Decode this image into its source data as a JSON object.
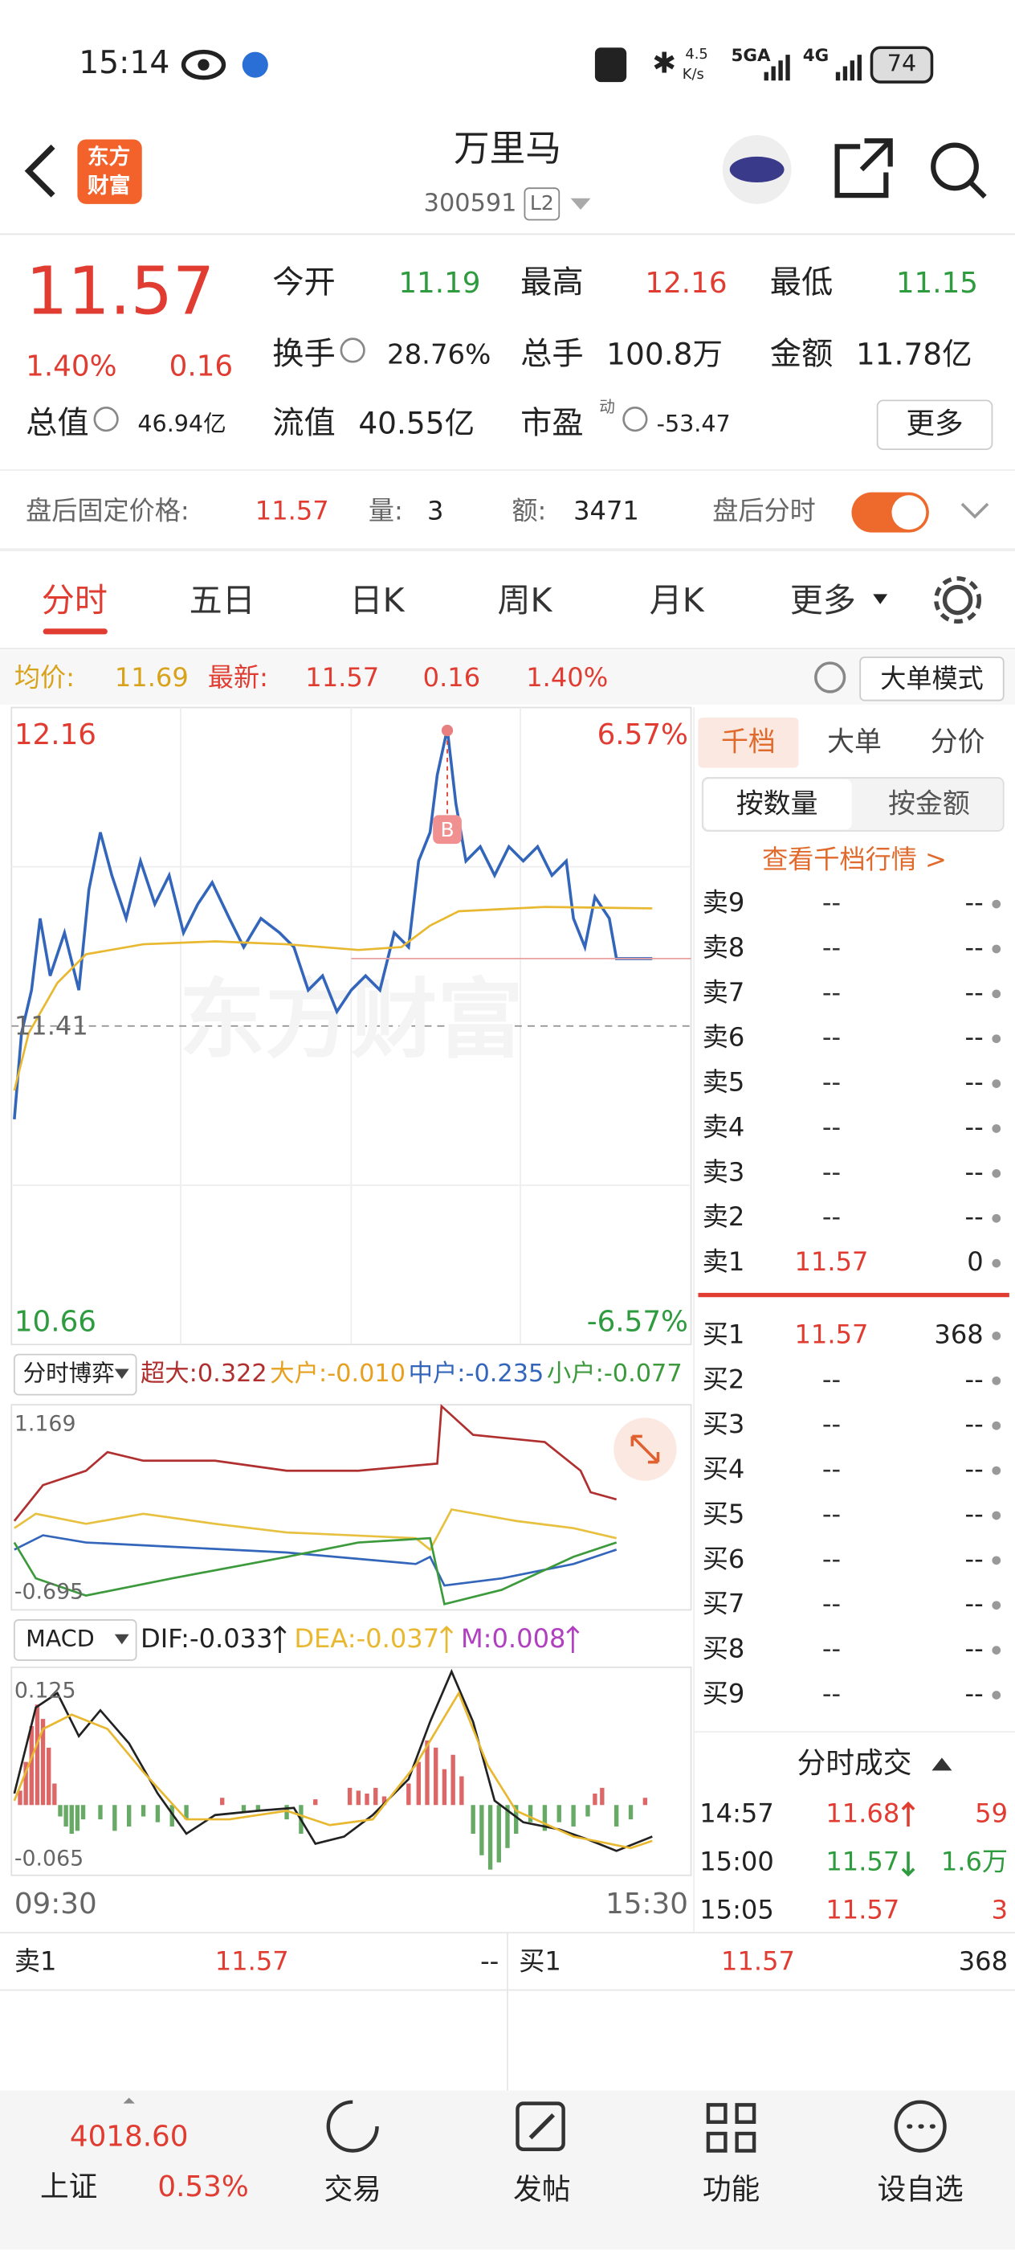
{
  "status": {
    "time": "15:14",
    "speed": "4.5",
    "speed_unit": "K/s",
    "net1": "5GA",
    "net2": "4G",
    "battery": "74"
  },
  "header": {
    "logo_top": "东方",
    "logo_bottom": "财富",
    "name": "万里马",
    "code": "300591",
    "level": "L2"
  },
  "quote": {
    "price": "11.57",
    "change_pct": "1.40%",
    "change": "0.16",
    "fields": [
      {
        "label": "今开",
        "value": "11.19"
      },
      {
        "label": "最高",
        "value": "12.16"
      },
      {
        "label": "最低",
        "value": "11.15"
      },
      {
        "label": "换手",
        "value": "28.76%"
      },
      {
        "label": "总手",
        "value": "100.8万"
      },
      {
        "label": "金额",
        "value": "11.78亿"
      },
      {
        "label": "总值",
        "value": "46.94亿"
      },
      {
        "label": "流值",
        "value": "40.55亿"
      },
      {
        "label": "市盈",
        "value": "-53.47"
      }
    ],
    "pe_mark": "动",
    "more": "更多"
  },
  "after_hours": {
    "label": "盘后固定价格:",
    "price": "11.57",
    "vol_label": "量:",
    "vol": "3",
    "amt_label": "额:",
    "amt": "3471",
    "toggle_label": "盘后分时"
  },
  "tabs": [
    "分时",
    "五日",
    "日K",
    "周K",
    "月K",
    "更多"
  ],
  "info_bar": {
    "avg_label": "均价:",
    "avg": "11.69",
    "last_label": "最新:",
    "last": "11.57",
    "change": "0.16",
    "change_pct": "1.40%",
    "mode": "大单模式"
  },
  "chart": {
    "top_left": "12.16",
    "top_right": "6.57%",
    "mid": "11.41",
    "bottom_left": "10.66",
    "bottom_right": "-6.57%",
    "watermark": "东方财富",
    "marker": "B"
  },
  "flow": {
    "selector": "分时博弈",
    "items": [
      "超大:0.322",
      "大户:-0.010",
      "中户:-0.235",
      "小户:-0.077"
    ],
    "axis_top": "1.169",
    "axis_bottom": "-0.695"
  },
  "macd": {
    "selector": "MACD",
    "items": [
      "DIF:-0.033",
      "DEA:-0.037",
      "M:0.008"
    ],
    "axis_top": "0.125",
    "axis_bottom": "-0.065"
  },
  "time_axis": [
    "09:30",
    "15:30"
  ],
  "side": {
    "tabs": [
      "千档",
      "大单",
      "分价"
    ],
    "sub_tabs": [
      "按数量",
      "按金额"
    ],
    "link": "查看千档行情 >",
    "sells": [
      {
        "label": "卖9",
        "price": "--",
        "vol": "--"
      },
      {
        "label": "卖8",
        "price": "--",
        "vol": "--"
      },
      {
        "label": "卖7",
        "price": "--",
        "vol": "--"
      },
      {
        "label": "卖6",
        "price": "--",
        "vol": "--"
      },
      {
        "label": "卖5",
        "price": "--",
        "vol": "--"
      },
      {
        "label": "卖4",
        "price": "--",
        "vol": "--"
      },
      {
        "label": "卖3",
        "price": "--",
        "vol": "--"
      },
      {
        "label": "卖2",
        "price": "--",
        "vol": "--"
      },
      {
        "label": "卖1",
        "price": "11.57",
        "vol": "0"
      }
    ],
    "buys": [
      {
        "label": "买1",
        "price": "11.57",
        "vol": "368"
      },
      {
        "label": "买2",
        "price": "--",
        "vol": "--"
      },
      {
        "label": "买3",
        "price": "--",
        "vol": "--"
      },
      {
        "label": "买4",
        "price": "--",
        "vol": "--"
      },
      {
        "label": "买5",
        "price": "--",
        "vol": "--"
      },
      {
        "label": "买6",
        "price": "--",
        "vol": "--"
      },
      {
        "label": "买7",
        "price": "--",
        "vol": "--"
      },
      {
        "label": "买8",
        "price": "--",
        "vol": "--"
      },
      {
        "label": "买9",
        "price": "--",
        "vol": "--"
      }
    ],
    "trades_title": "分时成交",
    "trades": [
      {
        "time": "14:57",
        "price": "11.68",
        "vol": "59",
        "dir": "up"
      },
      {
        "time": "15:00",
        "price": "11.57",
        "vol": "1.6万",
        "dir": "down"
      },
      {
        "time": "15:05",
        "price": "11.57",
        "vol": "3",
        "dir": "none"
      }
    ]
  },
  "bottom_bar": {
    "sell_label": "卖1",
    "sell_price": "11.57",
    "sell_vol": "--",
    "buy_label": "买1",
    "buy_price": "11.57",
    "buy_vol": "368"
  },
  "nav": {
    "index_value": "4018.60",
    "index_name": "上证",
    "index_pct": "0.53%",
    "items": [
      "交易",
      "发帖",
      "功能",
      "设自选"
    ]
  }
}
